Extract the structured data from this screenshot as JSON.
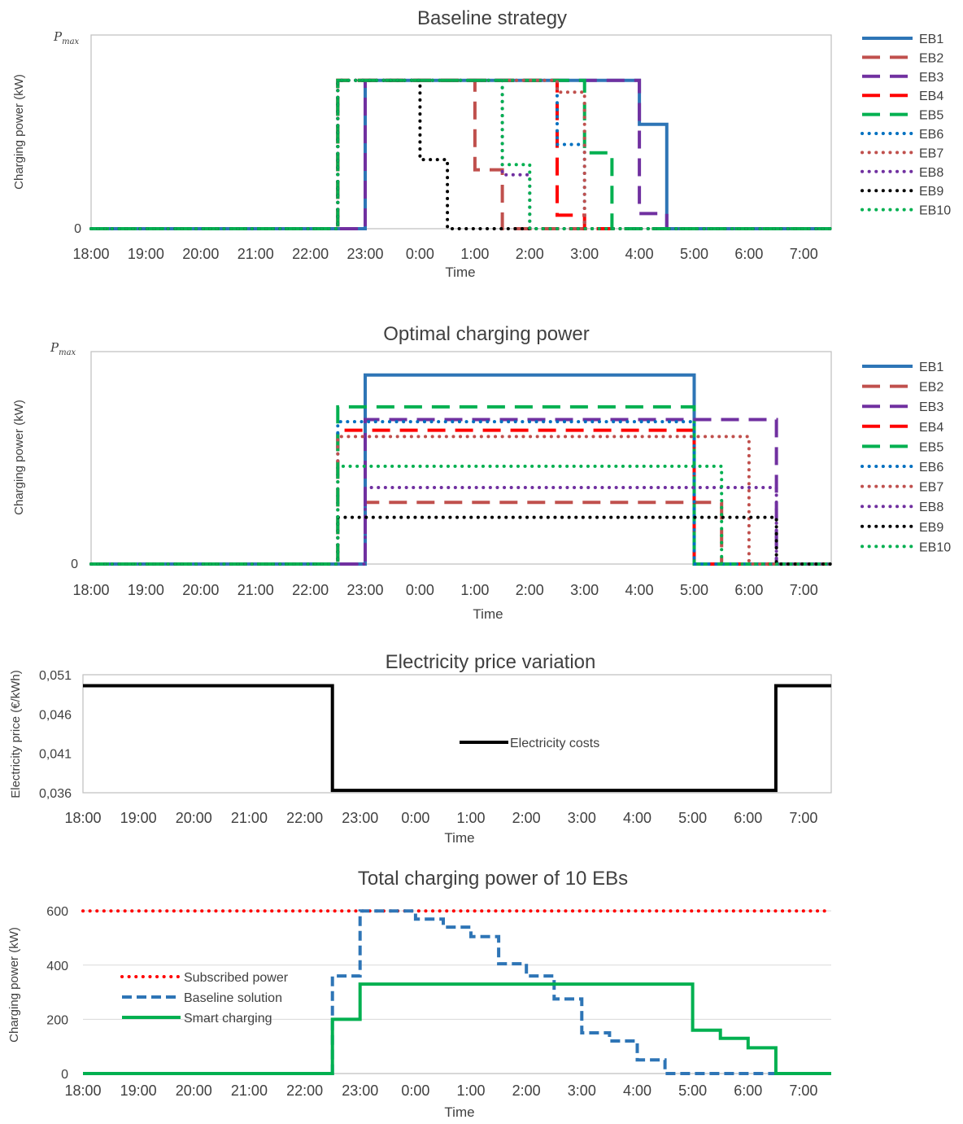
{
  "chart_data": [
    {
      "type": "line",
      "title": "Baseline strategy",
      "xlabel": "Time",
      "ylabel": "Charging power (kW)",
      "x_ticks": [
        "18:00",
        "19:00",
        "20:00",
        "21:00",
        "22:00",
        "23:00",
        "0:00",
        "1:00",
        "2:00",
        "3:00",
        "4:00",
        "5:00",
        "6:00",
        "7:00"
      ],
      "y_ticks": [
        "0",
        "Pmax"
      ],
      "ymax_label": {
        "main": "P",
        "sub": "max"
      },
      "ylim": [
        0,
        1
      ],
      "xlim": [
        0,
        13.5
      ],
      "legend_position": "right",
      "series": [
        {
          "name": "EB1",
          "color": "#2E75B6",
          "dash": "solid",
          "points": [
            [
              0,
              0
            ],
            [
              5,
              0
            ],
            [
              5,
              0.88
            ],
            [
              10,
              0.88
            ],
            [
              10,
              0.62
            ],
            [
              10.5,
              0.62
            ],
            [
              10.5,
              0
            ],
            [
              13.5,
              0
            ]
          ]
        },
        {
          "name": "EB2",
          "color": "#C0504D",
          "dash": "long",
          "points": [
            [
              0,
              0
            ],
            [
              4.5,
              0
            ],
            [
              4.5,
              0.88
            ],
            [
              7,
              0.88
            ],
            [
              7,
              0.35
            ],
            [
              7.5,
              0.35
            ],
            [
              7.5,
              0
            ],
            [
              13.5,
              0
            ]
          ]
        },
        {
          "name": "EB3",
          "color": "#7030A0",
          "dash": "long",
          "points": [
            [
              0,
              0
            ],
            [
              5,
              0
            ],
            [
              5,
              0.88
            ],
            [
              10,
              0.88
            ],
            [
              10,
              0.09
            ],
            [
              10.5,
              0.09
            ],
            [
              10.5,
              0
            ],
            [
              13.5,
              0
            ]
          ]
        },
        {
          "name": "EB4",
          "color": "#FF0000",
          "dash": "long",
          "points": [
            [
              0,
              0
            ],
            [
              4.5,
              0
            ],
            [
              4.5,
              0.88
            ],
            [
              8.5,
              0.88
            ],
            [
              8.5,
              0.08
            ],
            [
              9,
              0.08
            ],
            [
              9,
              0
            ],
            [
              13.5,
              0
            ]
          ]
        },
        {
          "name": "EB5",
          "color": "#00B050",
          "dash": "long",
          "points": [
            [
              0,
              0
            ],
            [
              4.5,
              0
            ],
            [
              4.5,
              0.88
            ],
            [
              9,
              0.88
            ],
            [
              9,
              0.45
            ],
            [
              9.5,
              0.45
            ],
            [
              9.5,
              0
            ],
            [
              13.5,
              0
            ]
          ]
        },
        {
          "name": "EB6",
          "color": "#0070C0",
          "dash": "dot",
          "points": [
            [
              0,
              0
            ],
            [
              4.5,
              0
            ],
            [
              4.5,
              0.88
            ],
            [
              8.5,
              0.88
            ],
            [
              8.5,
              0.5
            ],
            [
              9,
              0.5
            ],
            [
              9,
              0
            ],
            [
              13.5,
              0
            ]
          ]
        },
        {
          "name": "EB7",
          "color": "#C0504D",
          "dash": "dot",
          "points": [
            [
              0,
              0
            ],
            [
              4.5,
              0
            ],
            [
              4.5,
              0.88
            ],
            [
              8.5,
              0.88
            ],
            [
              8.5,
              0.81
            ],
            [
              9,
              0.81
            ],
            [
              9,
              0
            ],
            [
              13.5,
              0
            ]
          ]
        },
        {
          "name": "EB8",
          "color": "#7030A0",
          "dash": "dot",
          "points": [
            [
              0,
              0
            ],
            [
              4.5,
              0
            ],
            [
              4.5,
              0.88
            ],
            [
              7.5,
              0.88
            ],
            [
              7.5,
              0.32
            ],
            [
              8,
              0.32
            ],
            [
              8,
              0
            ],
            [
              13.5,
              0
            ]
          ]
        },
        {
          "name": "EB9",
          "color": "#000000",
          "dash": "dot",
          "points": [
            [
              0,
              0
            ],
            [
              4.5,
              0
            ],
            [
              4.5,
              0.88
            ],
            [
              6,
              0.88
            ],
            [
              6,
              0.41
            ],
            [
              6.5,
              0.41
            ],
            [
              6.5,
              0.37
            ],
            [
              6.5,
              0
            ],
            [
              13.5,
              0
            ]
          ]
        },
        {
          "name": "EB10",
          "color": "#00B050",
          "dash": "dot",
          "points": [
            [
              0,
              0
            ],
            [
              4.5,
              0
            ],
            [
              4.5,
              0.88
            ],
            [
              7.5,
              0.88
            ],
            [
              7.5,
              0.38
            ],
            [
              8,
              0.38
            ],
            [
              8,
              0
            ],
            [
              13.5,
              0
            ]
          ]
        }
      ]
    },
    {
      "type": "line",
      "title": "Optimal charging power",
      "xlabel": "Time",
      "ylabel": "Charging power (kW)",
      "x_ticks": [
        "18:00",
        "19:00",
        "20:00",
        "21:00",
        "22:00",
        "23:00",
        "0:00",
        "1:00",
        "2:00",
        "3:00",
        "4:00",
        "5:00",
        "6:00",
        "7:00"
      ],
      "y_ticks": [
        "0",
        "Pmax"
      ],
      "ymax_label": {
        "main": "P",
        "sub": "max"
      },
      "ylim": [
        0,
        1
      ],
      "xlim": [
        0,
        13.5
      ],
      "legend_position": "right",
      "series": [
        {
          "name": "EB1",
          "color": "#2E75B6",
          "dash": "solid",
          "points": [
            [
              0,
              0
            ],
            [
              5,
              0
            ],
            [
              5,
              0.89
            ],
            [
              11,
              0.89
            ],
            [
              11,
              0
            ],
            [
              13.5,
              0
            ]
          ]
        },
        {
          "name": "EB2",
          "color": "#C0504D",
          "dash": "long",
          "points": [
            [
              0,
              0
            ],
            [
              5,
              0
            ],
            [
              5,
              0.29
            ],
            [
              11.5,
              0.29
            ],
            [
              11.5,
              0
            ],
            [
              13.5,
              0
            ]
          ]
        },
        {
          "name": "EB3",
          "color": "#7030A0",
          "dash": "long",
          "points": [
            [
              0,
              0
            ],
            [
              5,
              0
            ],
            [
              5,
              0.68
            ],
            [
              12.5,
              0.68
            ],
            [
              12.5,
              0
            ],
            [
              13.5,
              0
            ]
          ]
        },
        {
          "name": "EB4",
          "color": "#FF0000",
          "dash": "long",
          "points": [
            [
              0,
              0
            ],
            [
              4.5,
              0
            ],
            [
              4.5,
              0.63
            ],
            [
              11,
              0.63
            ],
            [
              11,
              0
            ],
            [
              13.5,
              0
            ]
          ]
        },
        {
          "name": "EB5",
          "color": "#00B050",
          "dash": "long",
          "points": [
            [
              0,
              0
            ],
            [
              4.5,
              0
            ],
            [
              4.5,
              0.74
            ],
            [
              11,
              0.74
            ],
            [
              11,
              0
            ],
            [
              13.5,
              0
            ]
          ]
        },
        {
          "name": "EB6",
          "color": "#0070C0",
          "dash": "dot",
          "points": [
            [
              0,
              0
            ],
            [
              4.5,
              0
            ],
            [
              4.5,
              0.67
            ],
            [
              11,
              0.67
            ],
            [
              11,
              0
            ],
            [
              13.5,
              0
            ]
          ]
        },
        {
          "name": "EB7",
          "color": "#C0504D",
          "dash": "dot",
          "points": [
            [
              0,
              0
            ],
            [
              4.5,
              0
            ],
            [
              4.5,
              0.6
            ],
            [
              12,
              0.6
            ],
            [
              12,
              0
            ],
            [
              13.5,
              0
            ]
          ]
        },
        {
          "name": "EB8",
          "color": "#7030A0",
          "dash": "dot",
          "points": [
            [
              0,
              0
            ],
            [
              5,
              0
            ],
            [
              5,
              0.36
            ],
            [
              12.5,
              0.36
            ],
            [
              12.5,
              0
            ],
            [
              13.5,
              0
            ]
          ]
        },
        {
          "name": "EB9",
          "color": "#000000",
          "dash": "dot",
          "points": [
            [
              0,
              0
            ],
            [
              4.5,
              0
            ],
            [
              4.5,
              0.22
            ],
            [
              12.5,
              0.22
            ],
            [
              12.5,
              0
            ],
            [
              13.5,
              0
            ]
          ]
        },
        {
          "name": "EB10",
          "color": "#00B050",
          "dash": "dot",
          "points": [
            [
              0,
              0
            ],
            [
              4.5,
              0
            ],
            [
              4.5,
              0.46
            ],
            [
              11.5,
              0.46
            ],
            [
              11.5,
              0
            ],
            [
              13.5,
              0
            ]
          ]
        }
      ]
    },
    {
      "type": "line",
      "title": "Electricity price variation",
      "xlabel": "Time",
      "ylabel": "Electricity price (€/kWh)",
      "x_ticks": [
        "18:00",
        "19:00",
        "20:00",
        "21:00",
        "22:00",
        "23:00",
        "0:00",
        "1:00",
        "2:00",
        "3:00",
        "4:00",
        "5:00",
        "6:00",
        "7:00"
      ],
      "y_ticks": [
        "0,036",
        "0,041",
        "0,046",
        "0,051"
      ],
      "ylim": [
        0.036,
        0.051
      ],
      "xlim": [
        0,
        13.5
      ],
      "legend_position": "center",
      "series": [
        {
          "name": "Electricity costs",
          "color": "#000000",
          "dash": "solid",
          "points": [
            [
              0,
              0.0496
            ],
            [
              4.5,
              0.0496
            ],
            [
              4.5,
              0.0363
            ],
            [
              12.5,
              0.0363
            ],
            [
              12.5,
              0.0496
            ],
            [
              13.5,
              0.0496
            ]
          ]
        }
      ]
    },
    {
      "type": "line",
      "title": "Total charging power of 10 EBs",
      "xlabel": "Time",
      "ylabel": "Charging power (kW)",
      "x_ticks": [
        "18:00",
        "19:00",
        "20:00",
        "21:00",
        "22:00",
        "23:00",
        "0:00",
        "1:00",
        "2:00",
        "3:00",
        "4:00",
        "5:00",
        "6:00",
        "7:00"
      ],
      "y_ticks": [
        "0",
        "200",
        "400",
        "600"
      ],
      "ylim": [
        0,
        620
      ],
      "xlim": [
        0,
        13.5
      ],
      "legend_position": "left",
      "series": [
        {
          "name": "Subscribed power",
          "color": "#FF0000",
          "dash": "dot",
          "points": [
            [
              0,
              600
            ],
            [
              13.5,
              600
            ]
          ]
        },
        {
          "name": "Baseline solution",
          "color": "#2E75B6",
          "dash": "dash",
          "points": [
            [
              0,
              0
            ],
            [
              4.5,
              0
            ],
            [
              4.5,
              360
            ],
            [
              5,
              360
            ],
            [
              5,
              600
            ],
            [
              6,
              600
            ],
            [
              6,
              570
            ],
            [
              6.5,
              570
            ],
            [
              6.5,
              540
            ],
            [
              7,
              540
            ],
            [
              7,
              505
            ],
            [
              7.5,
              505
            ],
            [
              7.5,
              405
            ],
            [
              8,
              405
            ],
            [
              8,
              360
            ],
            [
              8.5,
              360
            ],
            [
              8.5,
              275
            ],
            [
              9,
              275
            ],
            [
              9,
              150
            ],
            [
              9.5,
              150
            ],
            [
              9.5,
              120
            ],
            [
              10,
              120
            ],
            [
              10,
              50
            ],
            [
              10.5,
              50
            ],
            [
              10.5,
              0
            ],
            [
              12.5,
              0
            ]
          ]
        },
        {
          "name": "Smart charging",
          "color": "#00B050",
          "dash": "solid",
          "points": [
            [
              0,
              0
            ],
            [
              4.5,
              0
            ],
            [
              4.5,
              200
            ],
            [
              5,
              200
            ],
            [
              5,
              330
            ],
            [
              11,
              330
            ],
            [
              11,
              160
            ],
            [
              11.5,
              160
            ],
            [
              11.5,
              130
            ],
            [
              12,
              130
            ],
            [
              12,
              95
            ],
            [
              12.5,
              95
            ],
            [
              12.5,
              0
            ],
            [
              13.5,
              0
            ]
          ]
        }
      ]
    }
  ]
}
